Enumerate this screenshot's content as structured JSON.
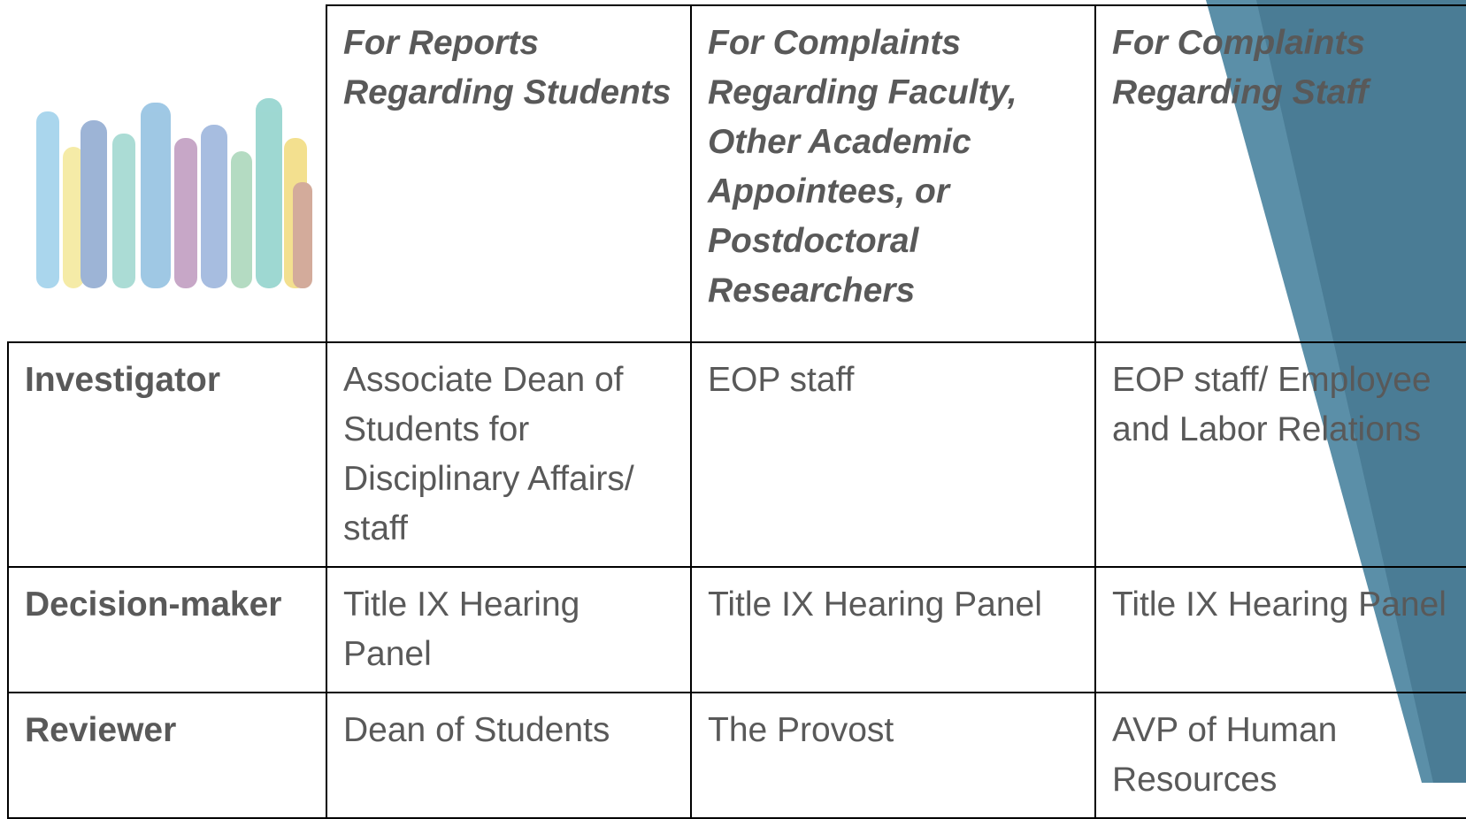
{
  "table": {
    "header": [
      "For Reports Regarding Students",
      "For Complaints Regarding Faculty, Other Academic Appointees, or Postdoctoral Researchers",
      "For Complaints Regarding Staff"
    ],
    "rows": [
      {
        "label": "Investigator",
        "cells": [
          "Associate Dean of Students for Disciplinary Affairs/ staff",
          "EOP staff",
          "EOP staff/ Employee and Labor Relations"
        ]
      },
      {
        "label": "Decision-maker",
        "cells": [
          "Title IX Hearing Panel",
          "Title IX Hearing Panel",
          "Title IX Hearing Panel"
        ]
      },
      {
        "label": "Reviewer",
        "cells": [
          "Dean of Students",
          "The Provost",
          "AVP of Human Resources"
        ]
      }
    ]
  }
}
